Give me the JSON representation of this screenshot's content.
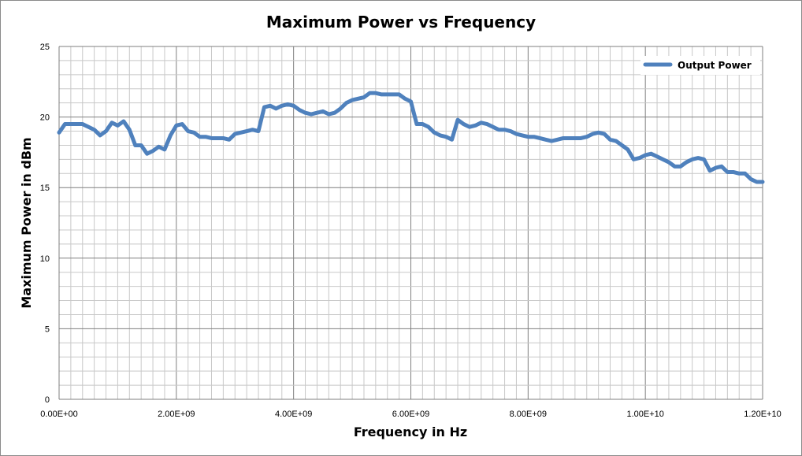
{
  "chart_data": {
    "type": "line",
    "title": "Maximum Power vs Frequency",
    "xlabel": "Frequency in Hz",
    "ylabel": "Maximum Power in dBm",
    "xlim": [
      0,
      12000000000
    ],
    "ylim": [
      0,
      25
    ],
    "x_ticks": [
      0,
      2000000000,
      4000000000,
      6000000000,
      8000000000,
      10000000000,
      12000000000
    ],
    "x_tick_labels": [
      "0.00E+00",
      "2.00E+09",
      "4.00E+09",
      "6.00E+09",
      "8.00E+09",
      "1.00E+10",
      "1.20E+10"
    ],
    "y_ticks": [
      0,
      5,
      10,
      15,
      20,
      25
    ],
    "y_tick_labels": [
      "0",
      "5",
      "10",
      "15",
      "20",
      "25"
    ],
    "grid": true,
    "legend_position": "top-right",
    "series": [
      {
        "name": "Output Power",
        "color": "#4f81bd",
        "x": [
          0,
          100000000,
          200000000,
          300000000,
          400000000,
          500000000,
          600000000,
          700000000,
          800000000,
          900000000,
          1000000000,
          1100000000,
          1200000000,
          1300000000,
          1400000000,
          1500000000,
          1600000000,
          1700000000,
          1800000000,
          1900000000,
          2000000000,
          2100000000,
          2200000000,
          2300000000,
          2400000000,
          2500000000,
          2600000000,
          2700000000,
          2800000000,
          2900000000,
          3000000000,
          3100000000,
          3200000000,
          3300000000,
          3400000000,
          3500000000,
          3600000000,
          3700000000,
          3800000000,
          3900000000,
          4000000000,
          4100000000,
          4200000000,
          4300000000,
          4400000000,
          4500000000,
          4600000000,
          4700000000,
          4800000000,
          4900000000,
          5000000000,
          5100000000,
          5200000000,
          5300000000,
          5400000000,
          5500000000,
          5600000000,
          5700000000,
          5800000000,
          5900000000,
          6000000000,
          6100000000,
          6200000000,
          6300000000,
          6400000000,
          6500000000,
          6600000000,
          6700000000,
          6800000000,
          6900000000,
          7000000000,
          7100000000,
          7200000000,
          7300000000,
          7400000000,
          7500000000,
          7600000000,
          7700000000,
          7800000000,
          7900000000,
          8000000000,
          8100000000,
          8200000000,
          8300000000,
          8400000000,
          8500000000,
          8600000000,
          8700000000,
          8800000000,
          8900000000,
          9000000000,
          9100000000,
          9200000000,
          9300000000,
          9400000000,
          9500000000,
          9600000000,
          9700000000,
          9800000000,
          9900000000,
          10000000000,
          10100000000,
          10200000000,
          10300000000,
          10400000000,
          10500000000,
          10600000000,
          10700000000,
          10800000000,
          10900000000,
          11000000000,
          11100000000,
          11200000000,
          11300000000,
          11400000000,
          11500000000,
          11600000000,
          11700000000,
          11800000000,
          11900000000,
          12000000000
        ],
        "values": [
          18.9,
          19.5,
          19.5,
          19.5,
          19.5,
          19.3,
          19.1,
          18.7,
          19.0,
          19.6,
          19.4,
          19.7,
          19.1,
          18.0,
          18.0,
          17.4,
          17.6,
          17.9,
          17.7,
          18.7,
          19.4,
          19.5,
          19.0,
          18.9,
          18.6,
          18.6,
          18.5,
          18.5,
          18.5,
          18.4,
          18.8,
          18.9,
          19.0,
          19.1,
          19.0,
          20.7,
          20.8,
          20.6,
          20.8,
          20.9,
          20.8,
          20.5,
          20.3,
          20.2,
          20.3,
          20.4,
          20.2,
          20.3,
          20.6,
          21.0,
          21.2,
          21.3,
          21.4,
          21.7,
          21.7,
          21.6,
          21.6,
          21.6,
          21.6,
          21.3,
          21.1,
          19.5,
          19.5,
          19.3,
          18.9,
          18.7,
          18.6,
          18.4,
          19.8,
          19.5,
          19.3,
          19.4,
          19.6,
          19.5,
          19.3,
          19.1,
          19.1,
          19.0,
          18.8,
          18.7,
          18.6,
          18.6,
          18.5,
          18.4,
          18.3,
          18.4,
          18.5,
          18.5,
          18.5,
          18.5,
          18.6,
          18.8,
          18.9,
          18.8,
          18.4,
          18.3,
          18.0,
          17.7,
          17.0,
          17.1,
          17.3,
          17.4,
          17.2,
          17.0,
          16.8,
          16.5,
          16.5,
          16.8,
          17.0,
          17.1,
          17.0,
          16.2,
          16.4,
          16.5,
          16.1,
          16.1,
          16.0,
          16.0,
          15.6,
          15.4,
          15.4
        ]
      }
    ]
  }
}
